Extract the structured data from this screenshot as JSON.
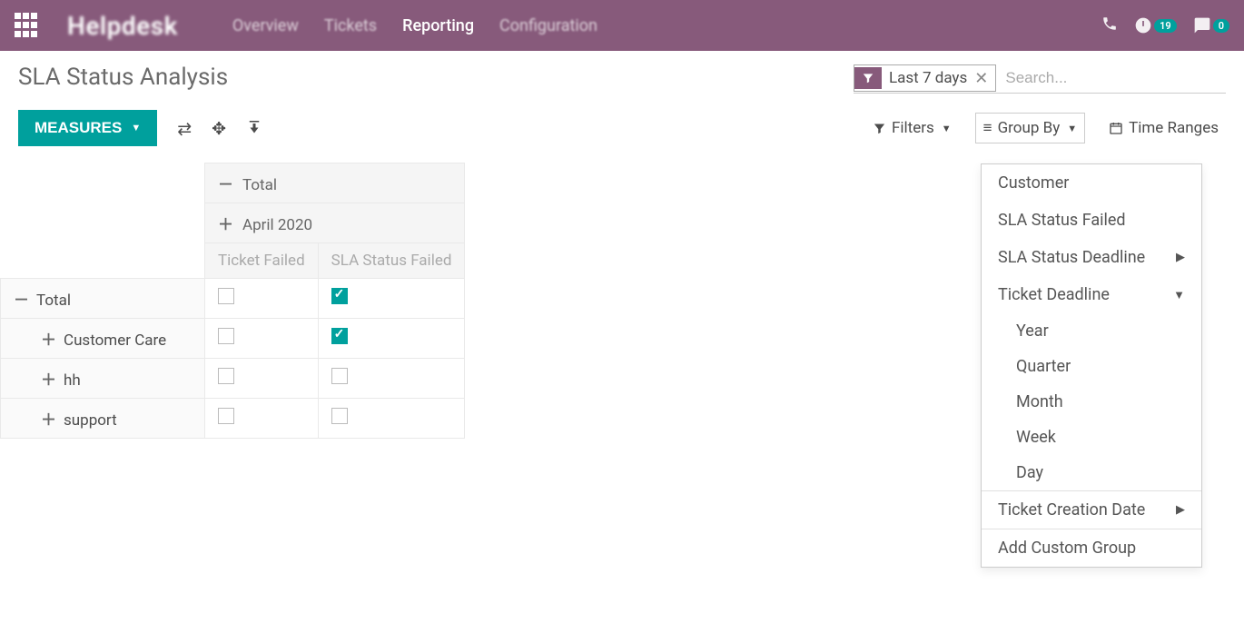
{
  "navbar": {
    "brand": "Helpdesk",
    "menu": [
      {
        "label": "Overview",
        "active": false
      },
      {
        "label": "Tickets",
        "active": false
      },
      {
        "label": "Reporting",
        "active": true
      },
      {
        "label": "Configuration",
        "active": false
      }
    ],
    "badges": {
      "activities": "19",
      "messages": "0"
    }
  },
  "controlpanel": {
    "title": "SLA Status Analysis",
    "search": {
      "facet_label": "Last 7 days",
      "placeholder": "Search..."
    },
    "buttons": {
      "measures": "MEASURES",
      "filters": "Filters",
      "groupby": "Group By",
      "timeranges": "Time Ranges"
    }
  },
  "pivot": {
    "col_headers": {
      "total": "Total",
      "period": "April 2020"
    },
    "measures": {
      "m1": "Ticket Failed",
      "m2": "SLA Status Failed"
    },
    "rows": [
      {
        "label": "Total",
        "expanded": true,
        "indent": 0,
        "m1": false,
        "m2": true
      },
      {
        "label": "Customer Care",
        "expanded": false,
        "indent": 1,
        "m1": false,
        "m2": true
      },
      {
        "label": "hh",
        "expanded": false,
        "indent": 1,
        "m1": false,
        "m2": false
      },
      {
        "label": "support",
        "expanded": false,
        "indent": 1,
        "m1": false,
        "m2": false
      }
    ]
  },
  "groupby_dropdown": {
    "items": [
      {
        "label": "Customer",
        "submenu": false,
        "expanded": false
      },
      {
        "label": "SLA Status Failed",
        "submenu": false,
        "expanded": false
      },
      {
        "label": "SLA Status Deadline",
        "submenu": true,
        "expanded": false
      },
      {
        "label": "Ticket Deadline",
        "submenu": true,
        "expanded": true
      }
    ],
    "sub_options": [
      "Year",
      "Quarter",
      "Month",
      "Week",
      "Day"
    ],
    "footer1": "Ticket Creation Date",
    "footer2": "Add Custom Group"
  },
  "colors": {
    "brand_bg": "#875a7b",
    "accent": "#00a09d",
    "text": "#4c4c4c",
    "muted": "#aaaaaa"
  }
}
